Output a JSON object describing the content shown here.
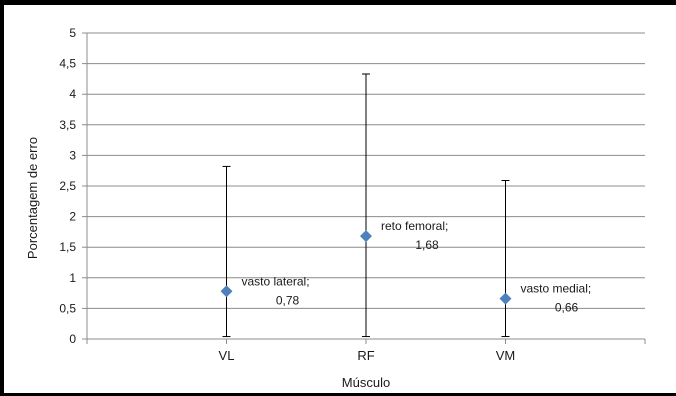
{
  "chart_data": {
    "type": "scatter",
    "xlabel": "Músculo",
    "ylabel": "Porcentagem de erro",
    "ylim": [
      0,
      5
    ],
    "yticks": [
      "0",
      "0,5",
      "1",
      "1,5",
      "2",
      "2,5",
      "3",
      "3,5",
      "4",
      "4,5",
      "5"
    ],
    "grid": true,
    "legend": "none",
    "categories": [
      "VL",
      "RF",
      "VM"
    ],
    "series": [
      {
        "color": "#4f81bd",
        "values": [
          0.78,
          1.68,
          0.66
        ],
        "error_low": [
          0.04,
          0.04,
          0.04
        ],
        "error_high": [
          2.82,
          4.33,
          2.59
        ],
        "labels": [
          {
            "name": "vasto lateral;",
            "value": "0,78"
          },
          {
            "name": "reto femoral;",
            "value": "1,68"
          },
          {
            "name": "vasto medial;",
            "value": "0,66"
          }
        ]
      }
    ]
  }
}
